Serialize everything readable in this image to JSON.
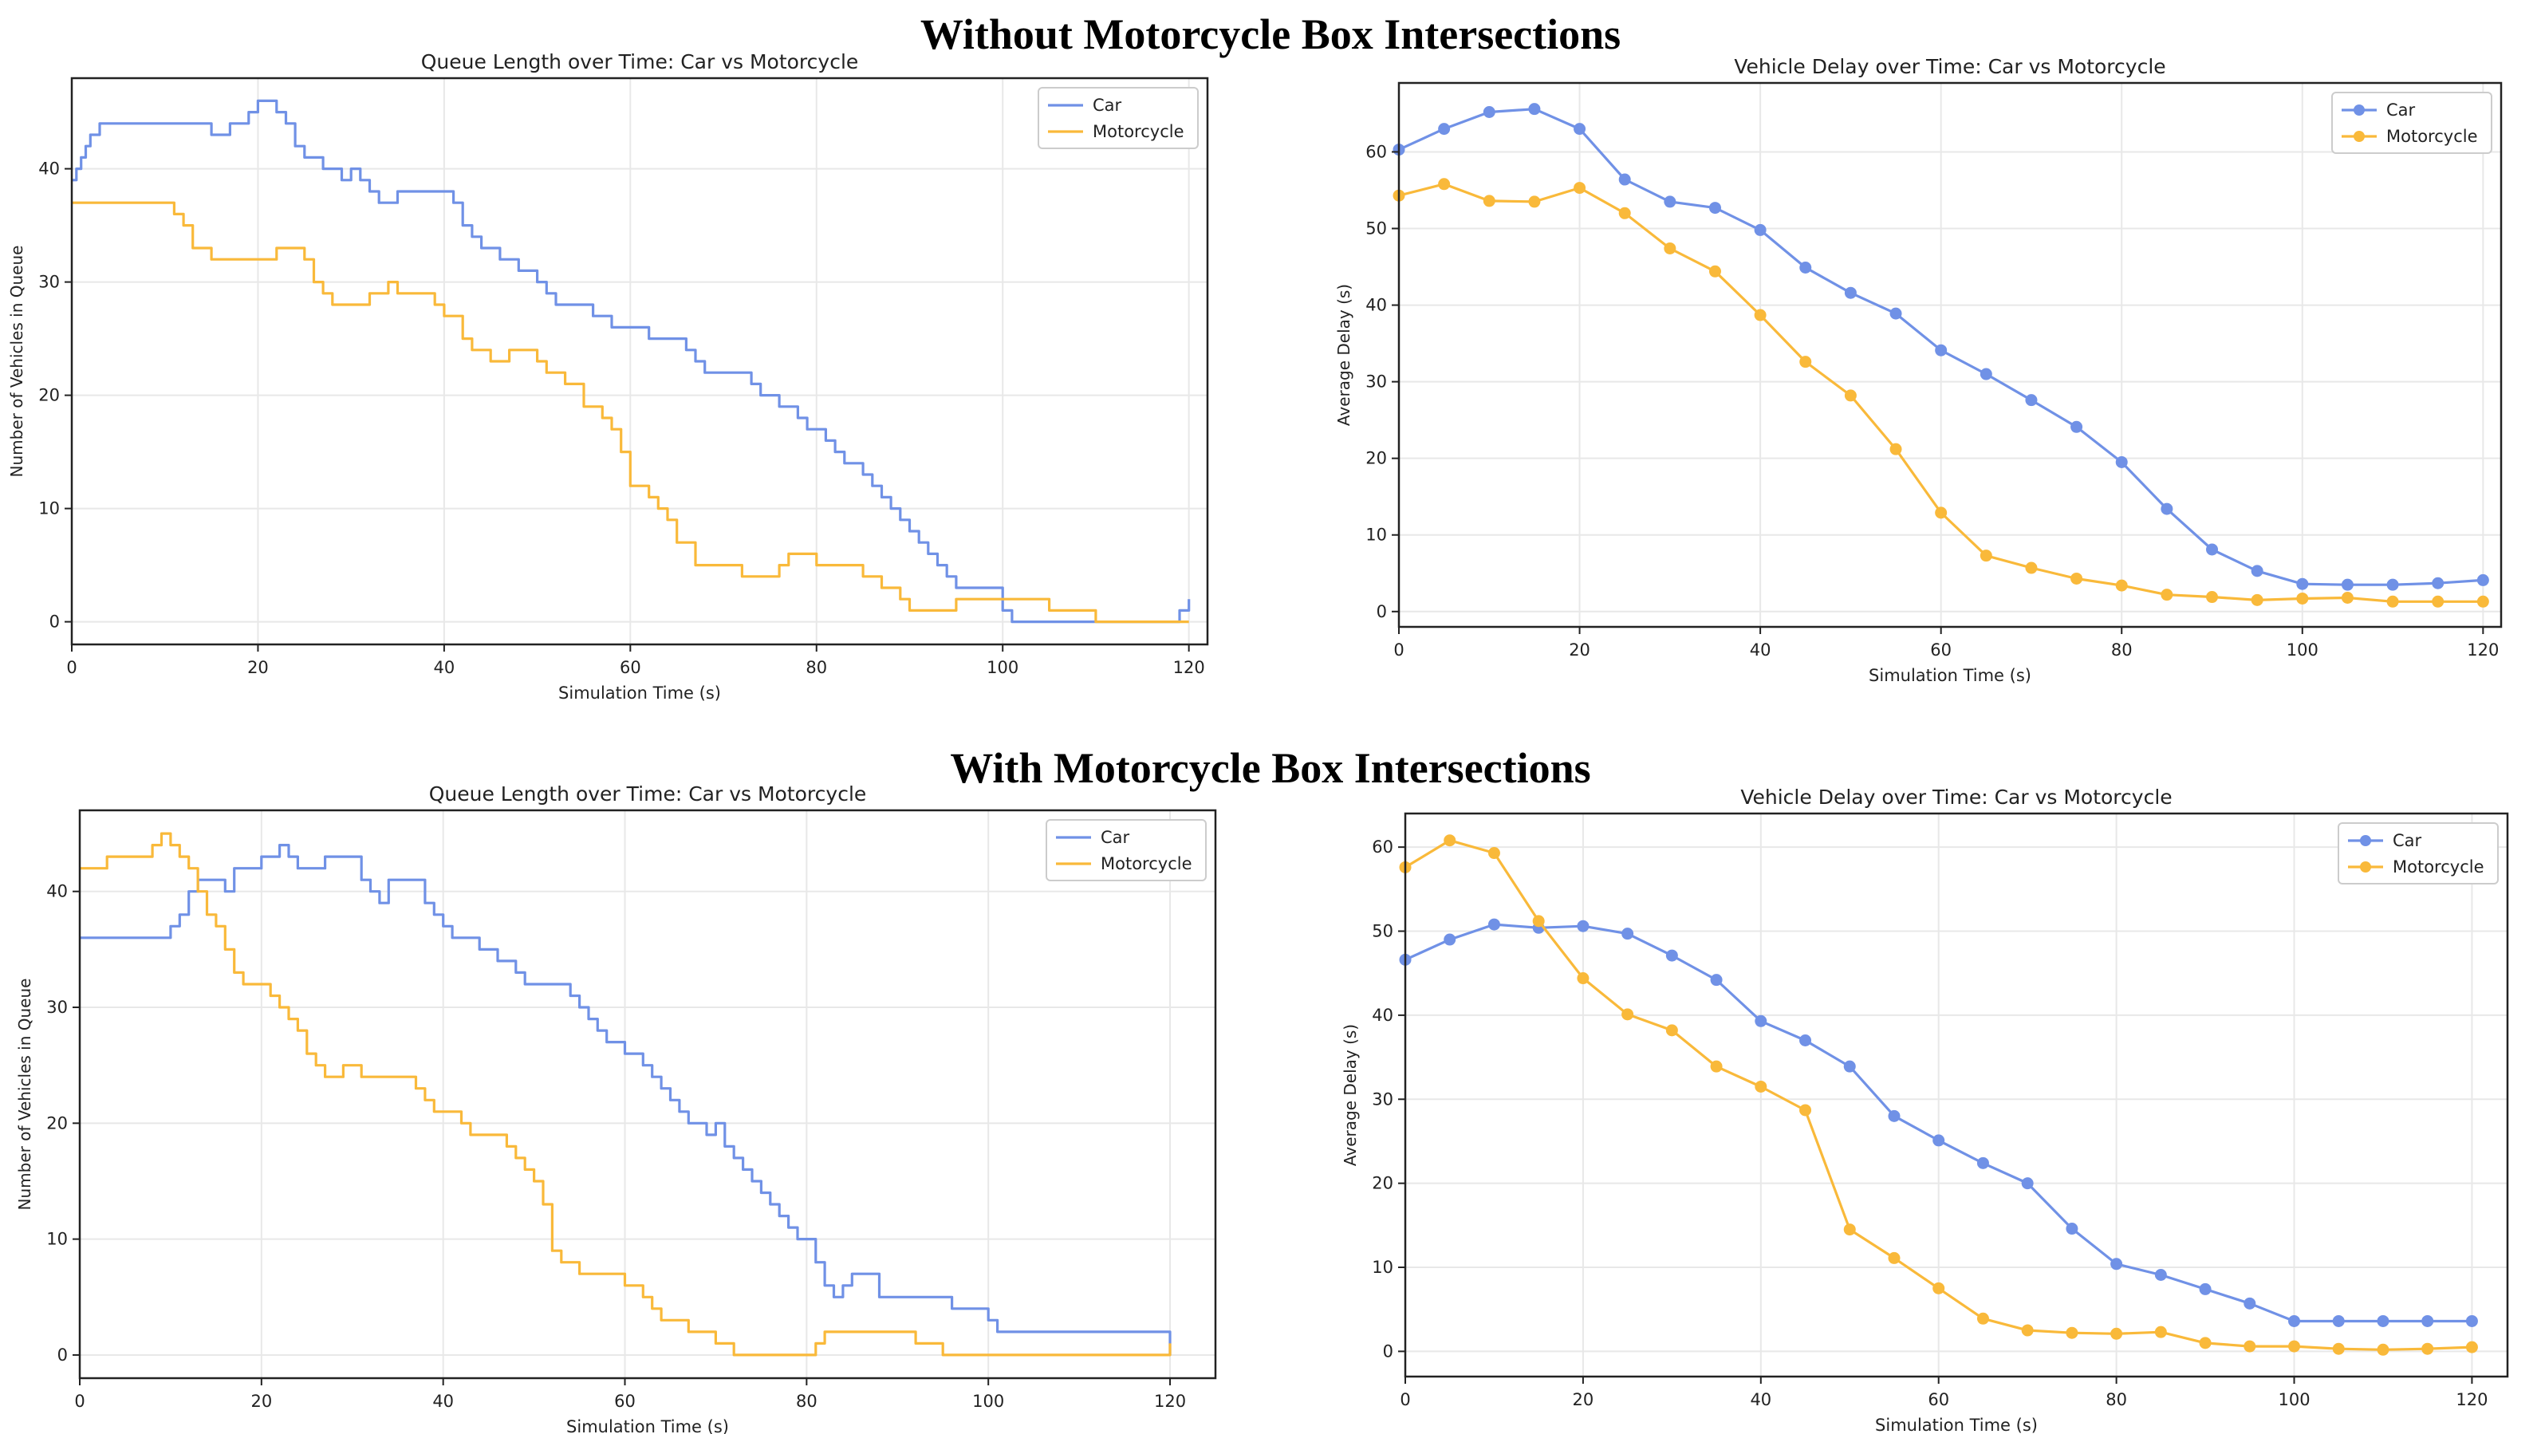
{
  "sections": [
    {
      "title": "Without Motorcycle Box Intersections"
    },
    {
      "title": "With Motorcycle Box Intersections"
    }
  ],
  "colors": {
    "car": "#7091e6",
    "motorcycle": "#f9b93a",
    "grid": "#e8e8e8",
    "axis": "#222222"
  },
  "chart_data": [
    {
      "type": "line",
      "style": "step",
      "title": "Queue Length over Time: Car vs Motorcycle",
      "xlabel": "Simulation Time (s)",
      "ylabel": "Number of Vehicles in Queue",
      "xlim": [
        0,
        122
      ],
      "ylim": [
        -2,
        48
      ],
      "xticks": [
        0,
        20,
        40,
        60,
        80,
        100,
        120
      ],
      "yticks": [
        0,
        10,
        20,
        30,
        40
      ],
      "legend": "top-right",
      "series": [
        {
          "name": "Car",
          "color": "car",
          "x": [
            0,
            0.5,
            1,
            1.5,
            2,
            3,
            5,
            10,
            15,
            16,
            17,
            18,
            19,
            20,
            21,
            22,
            23,
            24,
            25,
            26,
            27,
            28,
            29,
            30,
            31,
            32,
            33,
            34,
            35,
            36,
            40,
            41,
            42,
            43,
            44,
            45,
            46,
            47,
            48,
            49,
            50,
            51,
            52,
            53,
            55,
            56,
            57,
            58,
            60,
            61,
            62,
            65,
            66,
            67,
            68,
            72,
            73,
            74,
            75,
            76,
            77,
            78,
            79,
            80,
            81,
            82,
            83,
            84,
            85,
            86,
            87,
            88,
            89,
            90,
            91,
            92,
            93,
            94,
            95,
            97,
            100,
            101,
            106,
            107,
            108,
            118,
            119,
            120
          ],
          "y": [
            39,
            40,
            41,
            42,
            43,
            44,
            44,
            44,
            43,
            43,
            44,
            44,
            45,
            46,
            46,
            45,
            44,
            42,
            41,
            41,
            40,
            40,
            39,
            40,
            39,
            38,
            37,
            37,
            38,
            38,
            38,
            37,
            35,
            34,
            33,
            33,
            32,
            32,
            31,
            31,
            30,
            29,
            28,
            28,
            28,
            27,
            27,
            26,
            26,
            26,
            25,
            25,
            24,
            23,
            22,
            22,
            21,
            20,
            20,
            19,
            19,
            18,
            17,
            17,
            16,
            15,
            14,
            14,
            13,
            12,
            11,
            10,
            9,
            8,
            7,
            6,
            5,
            4,
            3,
            3,
            1,
            0,
            0,
            0,
            0,
            0,
            1,
            2
          ]
        },
        {
          "name": "Motorcycle",
          "color": "motorcycle",
          "x": [
            0,
            5,
            10,
            11,
            12,
            13,
            15,
            20,
            21,
            22,
            23,
            24,
            25,
            26,
            27,
            28,
            30,
            32,
            33,
            34,
            35,
            38,
            39,
            40,
            41,
            42,
            43,
            45,
            47,
            50,
            51,
            52,
            53,
            55,
            57,
            58,
            59,
            60,
            61,
            62,
            63,
            64,
            65,
            67,
            70,
            72,
            75,
            76,
            77,
            80,
            82,
            84,
            85,
            86,
            87,
            88,
            89,
            90,
            92,
            93,
            94,
            95,
            97,
            100,
            101,
            102,
            103,
            104,
            105,
            107,
            109,
            110,
            111,
            115,
            119,
            120
          ],
          "y": [
            37,
            37,
            37,
            36,
            35,
            33,
            32,
            32,
            32,
            33,
            33,
            33,
            32,
            30,
            29,
            28,
            28,
            29,
            29,
            30,
            29,
            29,
            28,
            27,
            27,
            25,
            24,
            23,
            24,
            23,
            22,
            22,
            21,
            19,
            18,
            17,
            15,
            12,
            12,
            11,
            10,
            9,
            7,
            5,
            5,
            4,
            4,
            5,
            6,
            5,
            5,
            5,
            4,
            4,
            3,
            3,
            2,
            1,
            1,
            1,
            1,
            2,
            2,
            2,
            2,
            2,
            2,
            2,
            1,
            1,
            1,
            0,
            0,
            0,
            0,
            0
          ]
        }
      ]
    },
    {
      "type": "line",
      "style": "marker",
      "title": "Vehicle Delay over Time: Car vs Motorcycle",
      "xlabel": "Simulation Time (s)",
      "ylabel": "Average Delay (s)",
      "xlim": [
        0,
        122
      ],
      "ylim": [
        -2,
        69
      ],
      "xticks": [
        0,
        20,
        40,
        60,
        80,
        100,
        120
      ],
      "yticks": [
        0,
        10,
        20,
        30,
        40,
        50,
        60
      ],
      "legend": "top-right",
      "series": [
        {
          "name": "Car",
          "color": "car",
          "x": [
            0,
            5,
            10,
            15,
            20,
            25,
            30,
            35,
            40,
            45,
            50,
            55,
            60,
            65,
            70,
            75,
            80,
            85,
            90,
            95,
            100,
            105,
            110,
            115,
            120
          ],
          "y": [
            60.3,
            63.0,
            65.2,
            65.6,
            63.0,
            56.4,
            53.5,
            52.7,
            49.8,
            44.9,
            41.6,
            38.9,
            34.1,
            31.0,
            27.6,
            24.1,
            19.5,
            13.4,
            8.1,
            5.3,
            3.6,
            3.5,
            3.5,
            3.7,
            4.1
          ]
        },
        {
          "name": "Motorcycle",
          "color": "motorcycle",
          "x": [
            0,
            5,
            10,
            15,
            20,
            25,
            30,
            35,
            40,
            45,
            50,
            55,
            60,
            65,
            70,
            75,
            80,
            85,
            90,
            95,
            100,
            105,
            110,
            115,
            120
          ],
          "y": [
            54.3,
            55.8,
            53.6,
            53.5,
            55.3,
            52.0,
            47.4,
            44.4,
            38.7,
            32.6,
            28.2,
            21.2,
            12.9,
            7.3,
            5.7,
            4.3,
            3.4,
            2.2,
            1.9,
            1.5,
            1.7,
            1.8,
            1.3,
            1.3,
            1.3
          ]
        }
      ]
    },
    {
      "type": "line",
      "style": "step",
      "title": "Queue Length over Time: Car vs Motorcycle",
      "xlabel": "Simulation Time (s)",
      "ylabel": "Number of Vehicles in Queue",
      "xlim": [
        0,
        125
      ],
      "ylim": [
        -2,
        47
      ],
      "xticks": [
        0,
        20,
        40,
        60,
        80,
        100,
        120
      ],
      "yticks": [
        0,
        10,
        20,
        30,
        40
      ],
      "legend": "top-right",
      "series": [
        {
          "name": "Car",
          "color": "car",
          "x": [
            0,
            9,
            10,
            11,
            12,
            13,
            15,
            16,
            17,
            18,
            20,
            21,
            22,
            23,
            24,
            27,
            30,
            31,
            32,
            33,
            34,
            37,
            38,
            39,
            40,
            41,
            42,
            44,
            46,
            48,
            49,
            52,
            54,
            55,
            56,
            57,
            58,
            60,
            62,
            63,
            64,
            65,
            66,
            67,
            68,
            69,
            70,
            71,
            72,
            73,
            74,
            75,
            76,
            77,
            78,
            79,
            80,
            81,
            82,
            83,
            84,
            85,
            88,
            92,
            96,
            97,
            100,
            101,
            120
          ],
          "y": [
            36,
            36,
            37,
            38,
            40,
            41,
            41,
            40,
            42,
            42,
            43,
            43,
            44,
            43,
            42,
            43,
            43,
            41,
            40,
            39,
            41,
            41,
            39,
            38,
            37,
            36,
            36,
            35,
            34,
            33,
            32,
            32,
            31,
            30,
            29,
            28,
            27,
            26,
            25,
            24,
            23,
            22,
            21,
            20,
            20,
            19,
            20,
            18,
            17,
            16,
            15,
            14,
            13,
            12,
            11,
            10,
            10,
            8,
            6,
            5,
            6,
            7,
            5,
            5,
            4,
            4,
            3,
            2,
            0
          ]
        },
        {
          "name": "Motorcycle",
          "color": "motorcycle",
          "x": [
            0,
            3,
            7,
            8,
            9,
            10,
            11,
            12,
            13,
            14,
            15,
            16,
            17,
            18,
            19,
            20,
            21,
            22,
            23,
            24,
            25,
            26,
            27,
            28,
            29,
            30,
            31,
            35,
            37,
            38,
            39,
            40,
            42,
            43,
            45,
            47,
            48,
            49,
            50,
            51,
            52,
            53,
            55,
            58,
            60,
            62,
            63,
            64,
            65,
            67,
            68,
            70,
            72,
            75,
            77,
            80,
            81,
            82,
            83,
            85,
            88,
            90,
            91,
            92,
            95,
            100,
            110,
            119,
            120
          ],
          "y": [
            42,
            43,
            43,
            44,
            45,
            44,
            43,
            42,
            40,
            38,
            37,
            35,
            33,
            32,
            32,
            32,
            31,
            30,
            29,
            28,
            26,
            25,
            24,
            24,
            25,
            25,
            24,
            24,
            23,
            22,
            21,
            21,
            20,
            19,
            19,
            18,
            17,
            16,
            15,
            13,
            9,
            8,
            7,
            7,
            6,
            5,
            4,
            3,
            3,
            2,
            2,
            1,
            0,
            0,
            0,
            0,
            1,
            2,
            2,
            2,
            2,
            2,
            2,
            1,
            0,
            0,
            0,
            0,
            1
          ]
        }
      ]
    },
    {
      "type": "line",
      "style": "marker",
      "title": "Vehicle Delay over Time: Car vs Motorcycle",
      "xlabel": "Simulation Time (s)",
      "ylabel": "Average Delay (s)",
      "xlim": [
        0,
        124
      ],
      "ylim": [
        -3,
        64
      ],
      "xticks": [
        0,
        20,
        40,
        60,
        80,
        100,
        120
      ],
      "yticks": [
        0,
        10,
        20,
        30,
        40,
        50,
        60
      ],
      "legend": "top-right",
      "series": [
        {
          "name": "Car",
          "color": "car",
          "x": [
            0,
            5,
            10,
            15,
            20,
            25,
            30,
            35,
            40,
            45,
            50,
            55,
            60,
            65,
            70,
            75,
            80,
            85,
            90,
            95,
            100,
            105,
            110,
            115,
            120
          ],
          "y": [
            46.6,
            49.0,
            50.8,
            50.4,
            50.6,
            49.7,
            47.1,
            44.2,
            39.3,
            37.0,
            33.9,
            28.0,
            25.1,
            22.4,
            20.0,
            14.6,
            10.4,
            9.1,
            7.4,
            5.7,
            3.6,
            3.6,
            3.6,
            3.6,
            3.6
          ]
        },
        {
          "name": "Motorcycle",
          "color": "motorcycle",
          "x": [
            0,
            5,
            10,
            15,
            20,
            25,
            30,
            35,
            40,
            45,
            50,
            55,
            60,
            65,
            70,
            75,
            80,
            85,
            90,
            95,
            100,
            105,
            110,
            115,
            120
          ],
          "y": [
            57.6,
            60.8,
            59.3,
            51.2,
            44.4,
            40.1,
            38.2,
            33.9,
            31.5,
            28.7,
            14.5,
            11.1,
            7.5,
            3.9,
            2.5,
            2.2,
            2.1,
            2.3,
            1.0,
            0.6,
            0.6,
            0.3,
            0.2,
            0.3,
            0.5
          ]
        }
      ]
    }
  ]
}
